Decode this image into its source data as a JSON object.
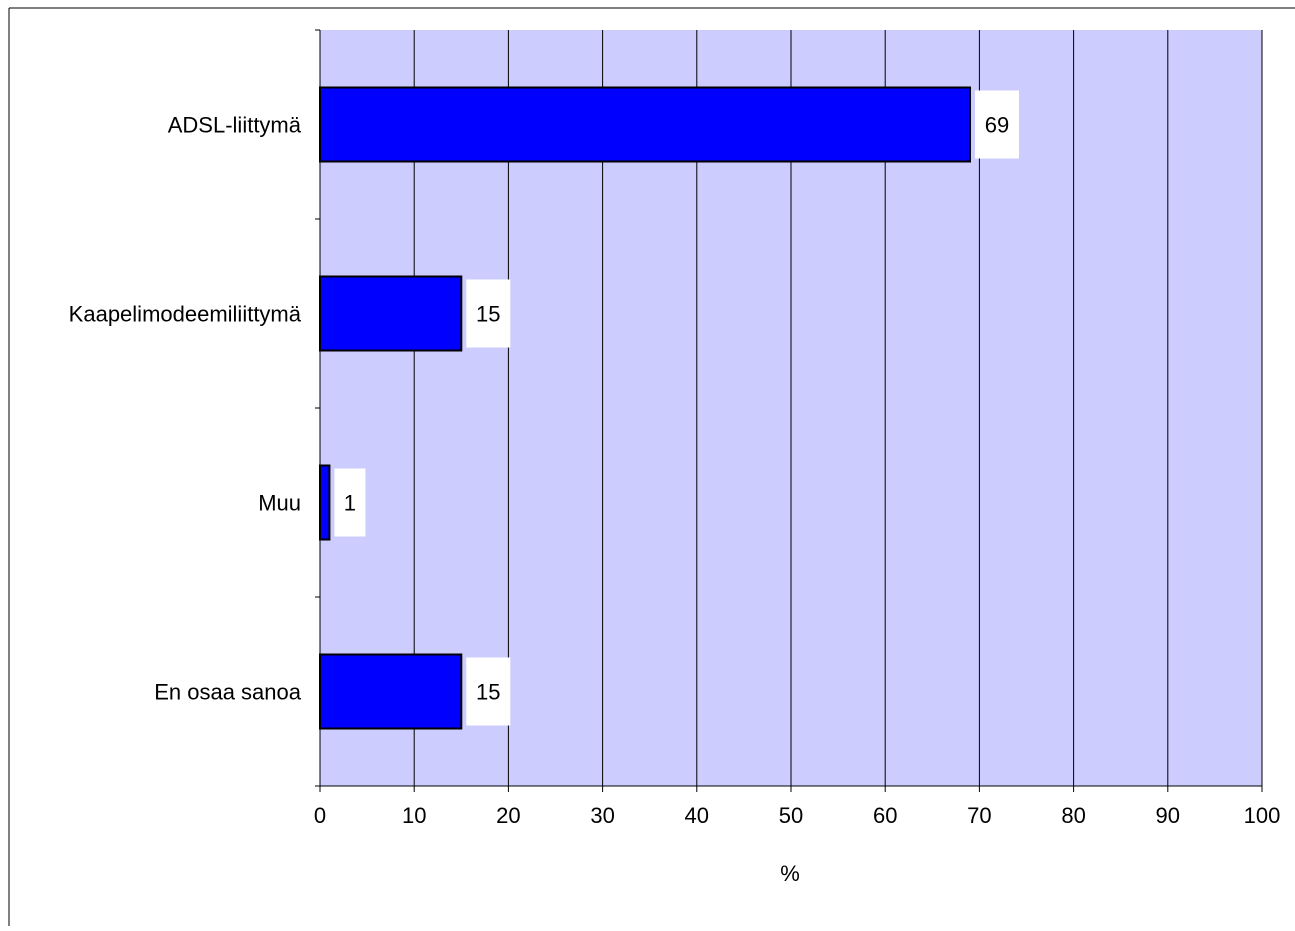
{
  "chart_data": {
    "type": "bar",
    "orientation": "horizontal",
    "categories": [
      "ADSL-liittymä",
      "Kaapelimodeemiliittymä",
      "Muu",
      "En osaa sanoa"
    ],
    "values": [
      69,
      15,
      1,
      15
    ],
    "data_labels": [
      "69",
      "15",
      "1",
      "15"
    ],
    "xlabel": "%",
    "xlim": [
      0,
      100
    ],
    "xticks": [
      0,
      10,
      20,
      30,
      40,
      50,
      60,
      70,
      80,
      90,
      100
    ],
    "xtick_labels": [
      "0",
      "10",
      "20",
      "30",
      "40",
      "50",
      "60",
      "70",
      "80",
      "90",
      "100"
    ],
    "grid": "vertical",
    "legend": "none",
    "colors": {
      "plot_background": "#ccccff",
      "bar_fill": "#0000ff",
      "bar_stroke": "#000000",
      "gridline": "#000000",
      "data_label_background": "#ffffff"
    }
  }
}
